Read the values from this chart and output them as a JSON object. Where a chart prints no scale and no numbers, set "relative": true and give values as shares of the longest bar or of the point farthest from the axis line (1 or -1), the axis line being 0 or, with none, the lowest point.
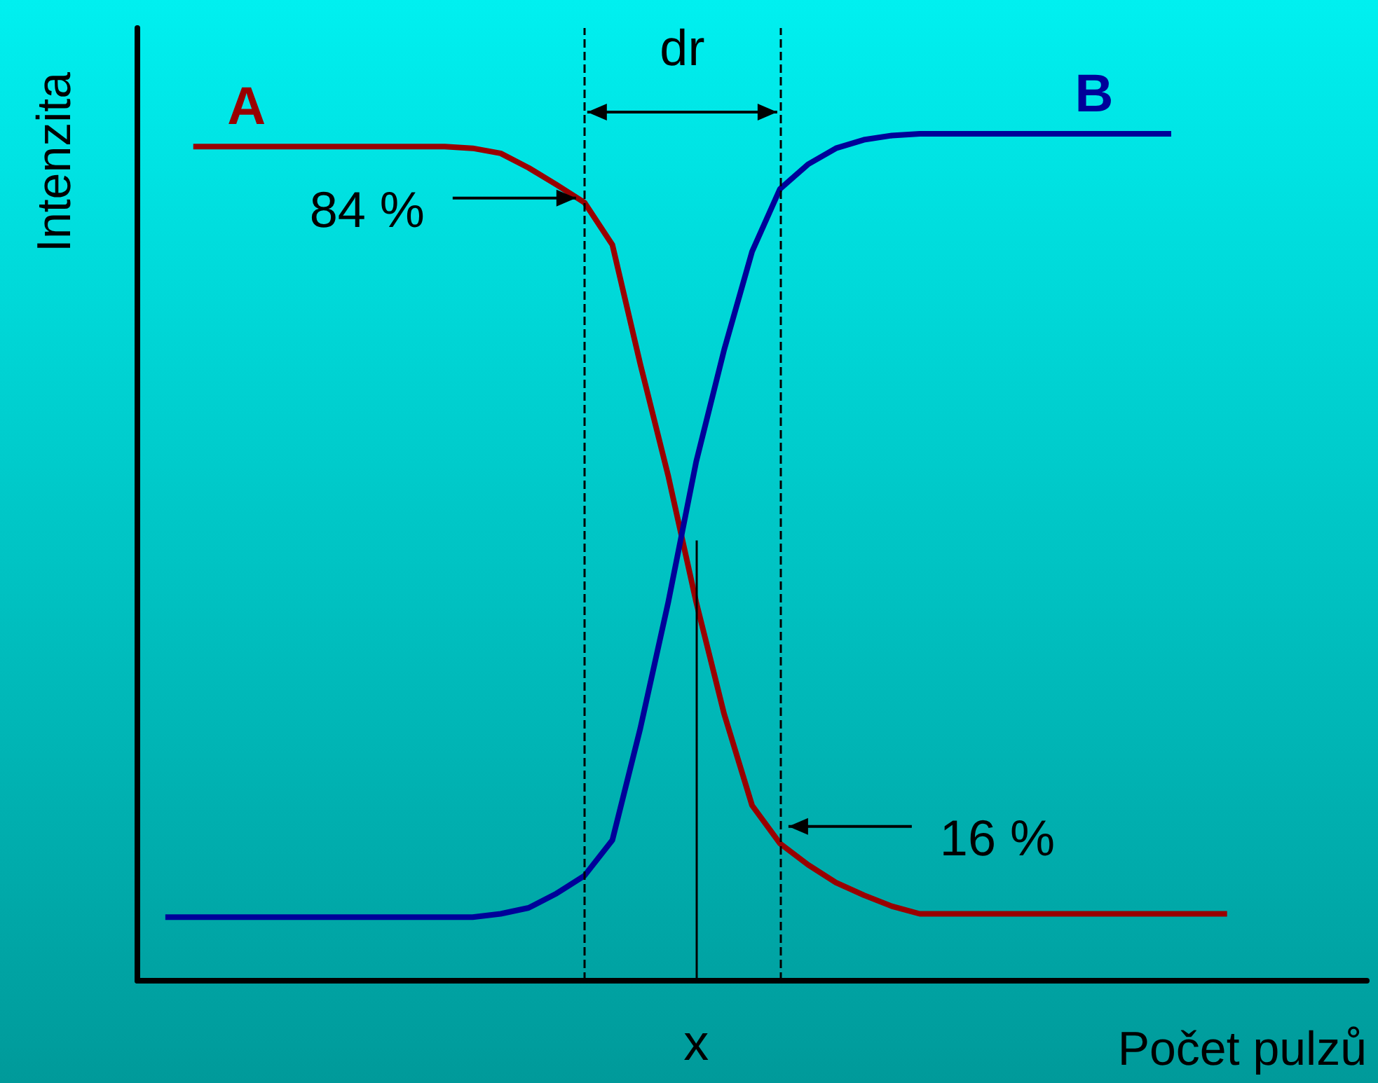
{
  "chart_data": {
    "type": "line",
    "relative": true,
    "xlabel": "Počet pulzů",
    "ylabel": "Intenzita",
    "grid": false,
    "legend": false,
    "categories": [
      null,
      null,
      null,
      null,
      null,
      null,
      null,
      null,
      null,
      null,
      null,
      null,
      null,
      null,
      null,
      null,
      null,
      null,
      null,
      null,
      null,
      null,
      null,
      null,
      null,
      null,
      null,
      null,
      null,
      null,
      null,
      null,
      null,
      null,
      null,
      null,
      null,
      null,
      null,
      null,
      null,
      null,
      null,
      null,
      null
    ],
    "series": [
      {
        "name": "A",
        "color": "#990000",
        "values": [
          null,
          null,
          0.985,
          0.985,
          0.985,
          0.985,
          0.985,
          0.985,
          0.985,
          0.985,
          0.985,
          0.985,
          0.983,
          0.977,
          0.96,
          0.94,
          0.919,
          0.869,
          0.728,
          0.596,
          0.447,
          0.315,
          0.207,
          0.162,
          0.137,
          0.116,
          0.101,
          0.088,
          0.079,
          0.079,
          0.079,
          0.079,
          0.079,
          0.079,
          0.079,
          0.079,
          0.079,
          0.079,
          0.079,
          0.079,
          null,
          null,
          null,
          null,
          null
        ]
      },
      {
        "name": "B",
        "color": "#000099",
        "values": [
          null,
          0.075,
          0.075,
          0.075,
          0.075,
          0.075,
          0.075,
          0.075,
          0.075,
          0.075,
          0.075,
          0.075,
          0.075,
          0.079,
          0.086,
          0.103,
          0.124,
          0.166,
          0.298,
          0.447,
          0.613,
          0.745,
          0.861,
          0.935,
          0.964,
          0.983,
          0.993,
          0.998,
          1,
          1,
          1,
          1,
          1,
          1,
          1,
          1,
          1,
          1,
          null,
          null,
          null,
          null,
          null,
          null,
          null
        ]
      }
    ],
    "annotations": [
      "dr",
      "84 %",
      "16 %",
      "x"
    ]
  }
}
